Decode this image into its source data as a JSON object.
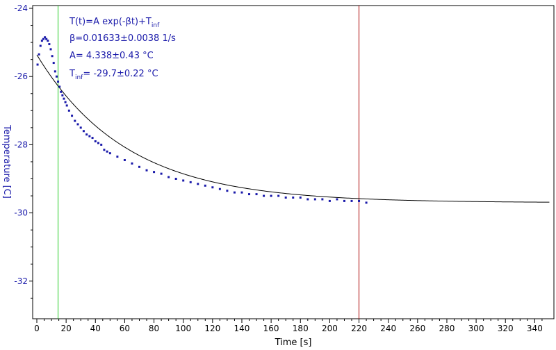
{
  "chart_data": {
    "type": "scatter",
    "xlabel": "Time [s]",
    "ylabel": "Temperature [C]",
    "xlim": [
      0,
      350
    ],
    "ylim": [
      -33,
      -24
    ],
    "x_ticks": [
      0,
      20,
      40,
      60,
      80,
      100,
      120,
      140,
      160,
      180,
      200,
      220,
      240,
      260,
      280,
      300,
      320,
      340
    ],
    "y_ticks": [
      -24,
      -26,
      -28,
      -30,
      -32
    ],
    "grid": false,
    "annotations": {
      "model": {
        "text": "T(t)=A exp(-βt)+T",
        "sub": "inf"
      },
      "beta": {
        "text": "β=0.01633±0.0038 1/s"
      },
      "amp": {
        "text": "A= 4.338±0.43 °C"
      },
      "tinf": {
        "prefix": "T",
        "sub": "inf",
        "text": "= -29.7±0.22 °C"
      }
    },
    "fit": {
      "A": 4.338,
      "beta": 0.01633,
      "T_inf": -29.7,
      "x_range": [
        0,
        350
      ]
    },
    "vertical_lines": [
      {
        "x": 14.5,
        "color": "#22cc22"
      },
      {
        "x": 220,
        "color": "#aa0000"
      }
    ],
    "series": [
      {
        "color": "#1a1aaa",
        "x": [
          0.5,
          1.5,
          2.5,
          3.5,
          4.5,
          5.5,
          6.5,
          7.5,
          8.5,
          9.5,
          10.5,
          11.5,
          12.5,
          13.5,
          14.5,
          15.5,
          16.5,
          17.5,
          18.5,
          19.5,
          20.5,
          22,
          24,
          26,
          28,
          30,
          32,
          34,
          36,
          38,
          40,
          42,
          44,
          46,
          48,
          50,
          55,
          60,
          65,
          70,
          75,
          80,
          85,
          90,
          95,
          100,
          105,
          110,
          115,
          120,
          125,
          130,
          135,
          140,
          145,
          150,
          155,
          160,
          165,
          170,
          175,
          180,
          185,
          190,
          195,
          200,
          205,
          210,
          215,
          220,
          225
        ],
        "y": [
          -25.65,
          -25.35,
          -25.1,
          -24.95,
          -24.9,
          -24.85,
          -24.9,
          -24.95,
          -25.05,
          -25.2,
          -25.4,
          -25.6,
          -25.85,
          -26.0,
          -26.15,
          -26.3,
          -26.45,
          -26.55,
          -26.65,
          -26.75,
          -26.85,
          -27.0,
          -27.15,
          -27.3,
          -27.4,
          -27.5,
          -27.6,
          -27.7,
          -27.75,
          -27.8,
          -27.9,
          -27.95,
          -28.0,
          -28.15,
          -28.2,
          -28.25,
          -28.35,
          -28.45,
          -28.55,
          -28.65,
          -28.75,
          -28.8,
          -28.85,
          -28.95,
          -29.0,
          -29.05,
          -29.1,
          -29.15,
          -29.2,
          -29.25,
          -29.3,
          -29.35,
          -29.4,
          -29.4,
          -29.45,
          -29.45,
          -29.5,
          -29.5,
          -29.5,
          -29.55,
          -29.55,
          -29.55,
          -29.6,
          -29.6,
          -29.6,
          -29.65,
          -29.6,
          -29.65,
          -29.65,
          -29.65,
          -29.7
        ]
      }
    ]
  }
}
